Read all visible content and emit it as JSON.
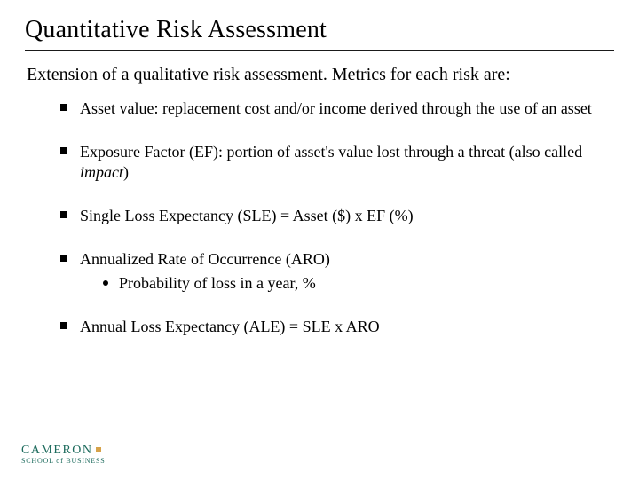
{
  "title": "Quantitative Risk Assessment",
  "intro": "Extension of a qualitative risk assessment.  Metrics for each risk are:",
  "bullets": [
    {
      "text": "Asset value: replacement cost and/or income derived through the use of an asset"
    },
    {
      "pre": "Exposure Factor (EF): portion of asset's value lost through a threat (also called ",
      "italic": "impact",
      "post": ")"
    },
    {
      "text": "Single Loss Expectancy (SLE) = Asset ($) x EF (%)"
    },
    {
      "text": "Annualized Rate of Occurrence (ARO)",
      "sub": [
        "Probability of loss in a year, %"
      ]
    },
    {
      "text": "Annual Loss Expectancy (ALE) = SLE x ARO"
    }
  ],
  "logo": {
    "main": "CAMERON",
    "sub": "SCHOOL of BUSINESS"
  },
  "colors": {
    "text": "#000000",
    "rule": "#1a1a1a",
    "logo": "#1d6b5d",
    "accent": "#d6a24a",
    "background": "#ffffff"
  },
  "typography": {
    "title_fontsize": 28,
    "intro_fontsize": 20,
    "bullet_fontsize": 18,
    "logo_main_fontsize": 14,
    "logo_sub_fontsize": 8,
    "font_family": "Times New Roman"
  }
}
